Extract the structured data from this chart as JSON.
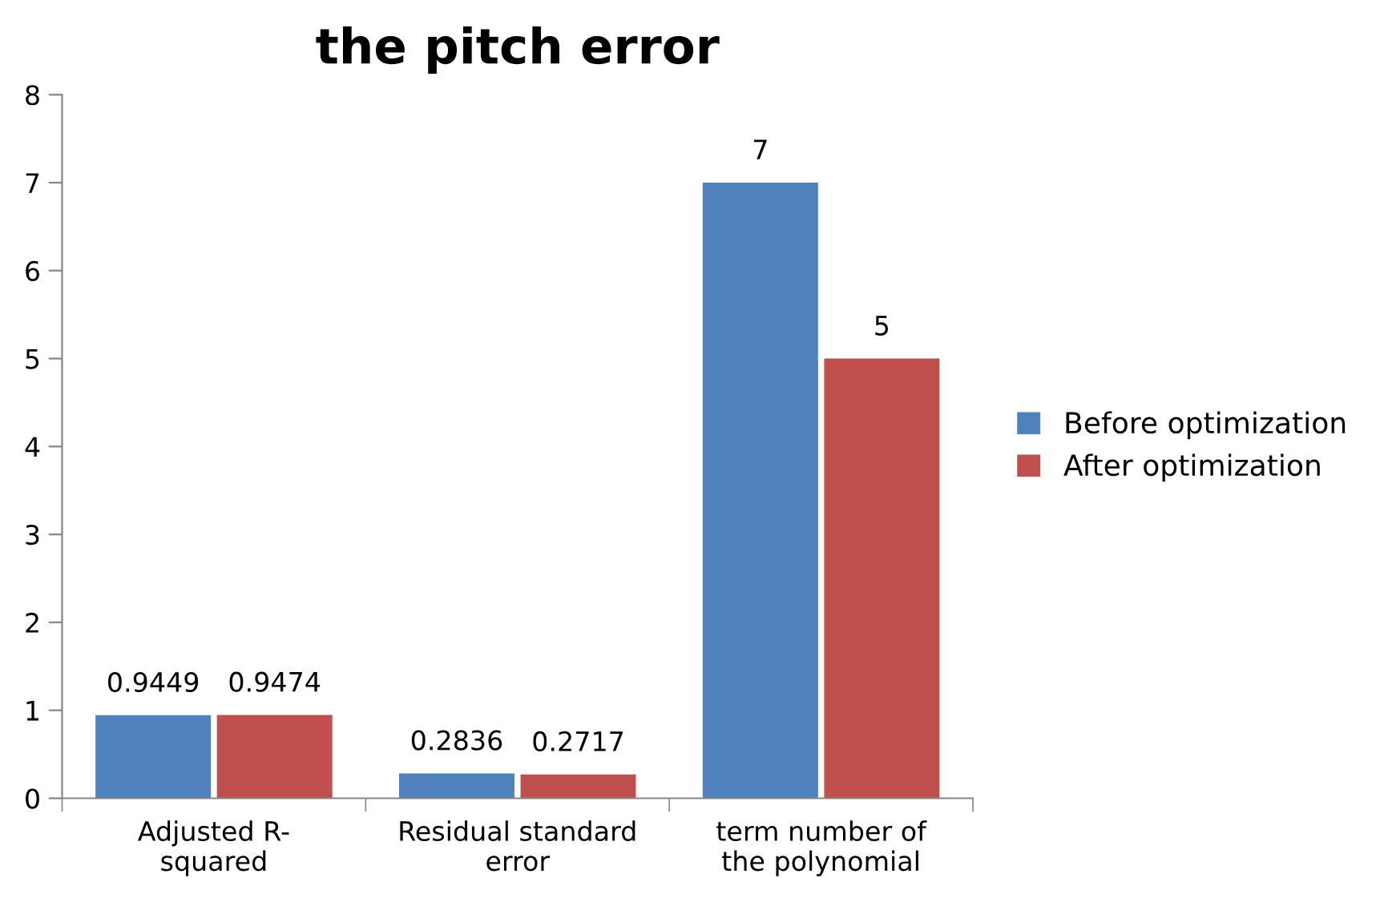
{
  "chart_data": {
    "type": "bar",
    "title": "the pitch error",
    "categories": [
      "Adjusted R-\nsquared",
      "Residual standard\nerror",
      "term number of\nthe polynomial"
    ],
    "series": [
      {
        "name": "Before optimization",
        "color": "#4f81bd",
        "values": [
          0.9449,
          0.2836,
          7
        ]
      },
      {
        "name": "After optimization",
        "color": "#c0504d",
        "values": [
          0.9474,
          0.2717,
          5
        ]
      }
    ],
    "ylim": [
      0,
      8
    ],
    "yticks": [
      0,
      1,
      2,
      3,
      4,
      5,
      6,
      7,
      8
    ],
    "grid": false,
    "legend": "right",
    "data_labels": true
  }
}
